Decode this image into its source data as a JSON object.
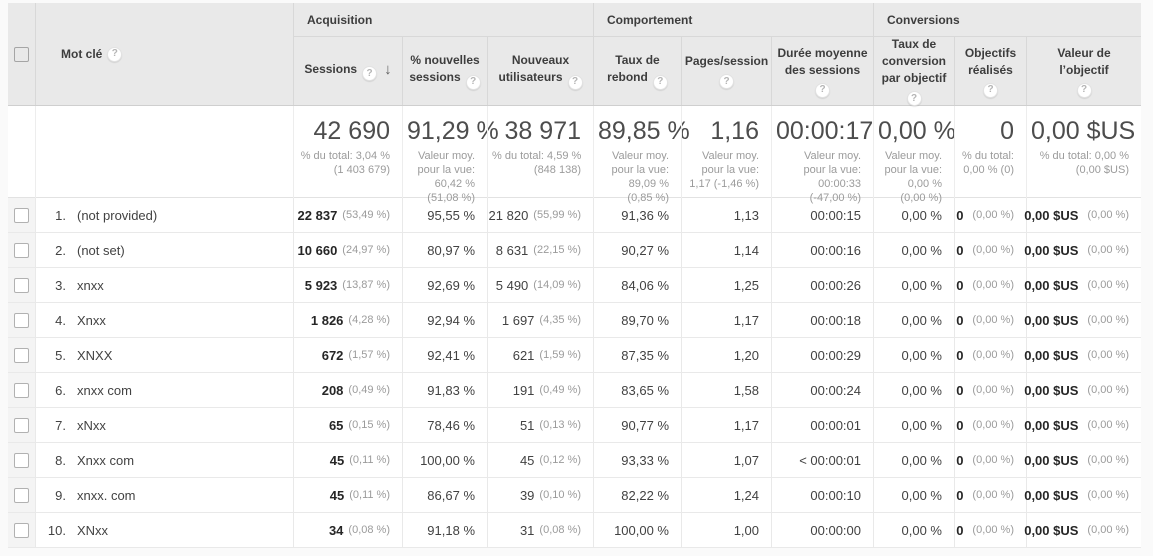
{
  "colors": {
    "header_bg": "#e9e9e9",
    "row_border": "#e9e9e9",
    "text_primary": "#424242",
    "text_secondary": "#9b9b9b",
    "summary_number": "#4d4d4d",
    "checkbox_col_bg": "#f4f4f4"
  },
  "icons": {
    "help": "?",
    "sort_desc": "↓"
  },
  "table": {
    "keyword_header": "Mot clé",
    "groups": [
      "Acquisition",
      "Comportement",
      "Conversions"
    ],
    "columns": [
      "Sessions",
      "% nouvelles sessions",
      "Nouveaux utilisateurs",
      "Taux de rebond",
      "Pages/session",
      "Durée moyenne des sessions",
      "Taux de conversion par objectif",
      "Objectifs réalisés",
      "Valeur de l’objectif"
    ],
    "summary_cells": [
      {
        "big": "42 690",
        "l1": "% du total: 3,04 %",
        "l2": "(1 403 679)"
      },
      {
        "big": "91,29 %",
        "l1": "Valeur moy.",
        "l2": "pour la vue:",
        "l3": "60,42 %",
        "l4": "(51,08 %)"
      },
      {
        "big": "38 971",
        "l1": "% du total: 4,59 %",
        "l2": "(848 138)"
      },
      {
        "big": "89,85 %",
        "l1": "Valeur moy.",
        "l2": "pour la vue:",
        "l3": "89,09 %",
        "l4": "(0,85 %)"
      },
      {
        "big": "1,16",
        "l1": "Valeur moy.",
        "l2": "pour la vue:",
        "l3": "1,17 (-1,46 %)"
      },
      {
        "big": "00:00:17",
        "l1": "Valeur moy.",
        "l2": "pour la vue:",
        "l3": "00:00:33",
        "l4": "(-47,00 %)"
      },
      {
        "big": "0,00 %",
        "l1": "Valeur moy.",
        "l2": "pour la vue:",
        "l3": "0,00 %",
        "l4": "(0,00 %)"
      },
      {
        "big": "0",
        "l1": "% du total:",
        "l2": "0,00 % (0)"
      },
      {
        "big": "0,00 $US",
        "l1": "% du total: 0,00 %",
        "l2": "(0,00 $US)"
      }
    ],
    "rows": [
      {
        "index": "1.",
        "keyword": "(not provided)",
        "sessions": "22 837",
        "sessions_pct": "(53,49 %)",
        "new_sessions_rate": "95,55 %",
        "new_users": "21 820",
        "new_users_pct": "(55,99 %)",
        "bounce_rate": "91,36 %",
        "pages_per_session": "1,13",
        "avg_session_duration": "00:00:15",
        "goal_conversion_rate": "0,00 %",
        "goal_completions": "0",
        "goal_completions_pct": "(0,00 %)",
        "goal_value": "0,00 $US",
        "goal_value_pct": "(0,00 %)"
      },
      {
        "index": "2.",
        "keyword": "(not set)",
        "sessions": "10 660",
        "sessions_pct": "(24,97 %)",
        "new_sessions_rate": "80,97 %",
        "new_users": "8 631",
        "new_users_pct": "(22,15 %)",
        "bounce_rate": "90,27 %",
        "pages_per_session": "1,14",
        "avg_session_duration": "00:00:16",
        "goal_conversion_rate": "0,00 %",
        "goal_completions": "0",
        "goal_completions_pct": "(0,00 %)",
        "goal_value": "0,00 $US",
        "goal_value_pct": "(0,00 %)"
      },
      {
        "index": "3.",
        "keyword": "xnxx",
        "sessions": "5 923",
        "sessions_pct": "(13,87 %)",
        "new_sessions_rate": "92,69 %",
        "new_users": "5 490",
        "new_users_pct": "(14,09 %)",
        "bounce_rate": "84,06 %",
        "pages_per_session": "1,25",
        "avg_session_duration": "00:00:26",
        "goal_conversion_rate": "0,00 %",
        "goal_completions": "0",
        "goal_completions_pct": "(0,00 %)",
        "goal_value": "0,00 $US",
        "goal_value_pct": "(0,00 %)"
      },
      {
        "index": "4.",
        "keyword": "Xnxx",
        "sessions": "1 826",
        "sessions_pct": "(4,28 %)",
        "new_sessions_rate": "92,94 %",
        "new_users": "1 697",
        "new_users_pct": "(4,35 %)",
        "bounce_rate": "89,70 %",
        "pages_per_session": "1,17",
        "avg_session_duration": "00:00:18",
        "goal_conversion_rate": "0,00 %",
        "goal_completions": "0",
        "goal_completions_pct": "(0,00 %)",
        "goal_value": "0,00 $US",
        "goal_value_pct": "(0,00 %)"
      },
      {
        "index": "5.",
        "keyword": "XNXX",
        "sessions": "672",
        "sessions_pct": "(1,57 %)",
        "new_sessions_rate": "92,41 %",
        "new_users": "621",
        "new_users_pct": "(1,59 %)",
        "bounce_rate": "87,35 %",
        "pages_per_session": "1,20",
        "avg_session_duration": "00:00:29",
        "goal_conversion_rate": "0,00 %",
        "goal_completions": "0",
        "goal_completions_pct": "(0,00 %)",
        "goal_value": "0,00 $US",
        "goal_value_pct": "(0,00 %)"
      },
      {
        "index": "6.",
        "keyword": "xnxx com",
        "sessions": "208",
        "sessions_pct": "(0,49 %)",
        "new_sessions_rate": "91,83 %",
        "new_users": "191",
        "new_users_pct": "(0,49 %)",
        "bounce_rate": "83,65 %",
        "pages_per_session": "1,58",
        "avg_session_duration": "00:00:24",
        "goal_conversion_rate": "0,00 %",
        "goal_completions": "0",
        "goal_completions_pct": "(0,00 %)",
        "goal_value": "0,00 $US",
        "goal_value_pct": "(0,00 %)"
      },
      {
        "index": "7.",
        "keyword": "xNxx",
        "sessions": "65",
        "sessions_pct": "(0,15 %)",
        "new_sessions_rate": "78,46 %",
        "new_users": "51",
        "new_users_pct": "(0,13 %)",
        "bounce_rate": "90,77 %",
        "pages_per_session": "1,17",
        "avg_session_duration": "00:00:01",
        "goal_conversion_rate": "0,00 %",
        "goal_completions": "0",
        "goal_completions_pct": "(0,00 %)",
        "goal_value": "0,00 $US",
        "goal_value_pct": "(0,00 %)"
      },
      {
        "index": "8.",
        "keyword": "Xnxx com",
        "sessions": "45",
        "sessions_pct": "(0,11 %)",
        "new_sessions_rate": "100,00 %",
        "new_users": "45",
        "new_users_pct": "(0,12 %)",
        "bounce_rate": "93,33 %",
        "pages_per_session": "1,07",
        "avg_session_duration": "< 00:00:01",
        "goal_conversion_rate": "0,00 %",
        "goal_completions": "0",
        "goal_completions_pct": "(0,00 %)",
        "goal_value": "0,00 $US",
        "goal_value_pct": "(0,00 %)"
      },
      {
        "index": "9.",
        "keyword": "xnxx. com",
        "sessions": "45",
        "sessions_pct": "(0,11 %)",
        "new_sessions_rate": "86,67 %",
        "new_users": "39",
        "new_users_pct": "(0,10 %)",
        "bounce_rate": "82,22 %",
        "pages_per_session": "1,24",
        "avg_session_duration": "00:00:10",
        "goal_conversion_rate": "0,00 %",
        "goal_completions": "0",
        "goal_completions_pct": "(0,00 %)",
        "goal_value": "0,00 $US",
        "goal_value_pct": "(0,00 %)"
      },
      {
        "index": "10.",
        "keyword": "XNxx",
        "sessions": "34",
        "sessions_pct": "(0,08 %)",
        "new_sessions_rate": "91,18 %",
        "new_users": "31",
        "new_users_pct": "(0,08 %)",
        "bounce_rate": "100,00 %",
        "pages_per_session": "1,00",
        "avg_session_duration": "00:00:00",
        "goal_conversion_rate": "0,00 %",
        "goal_completions": "0",
        "goal_completions_pct": "(0,00 %)",
        "goal_value": "0,00 $US",
        "goal_value_pct": "(0,00 %)"
      }
    ]
  }
}
